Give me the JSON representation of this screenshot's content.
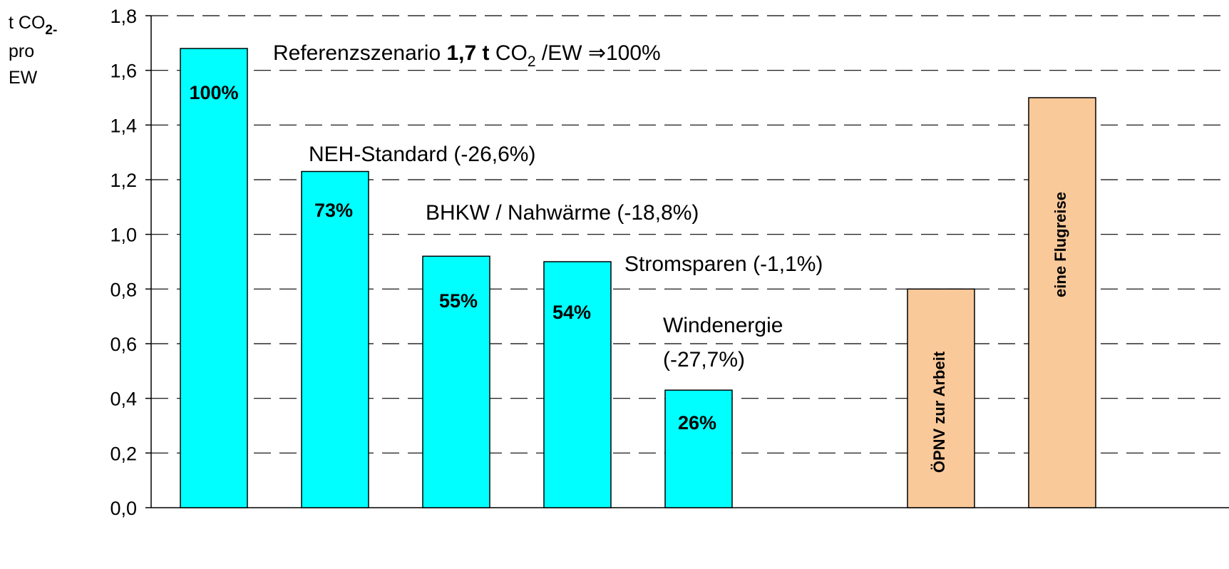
{
  "chart_data": {
    "type": "bar",
    "ylabel": [
      "t CO",
      "2-",
      "pro",
      "EW"
    ],
    "categories": [
      null,
      null,
      null,
      null,
      null,
      null,
      "ÖPNV zur Arbeit",
      "eine Flugreise"
    ],
    "values": [
      1.68,
      1.23,
      0.92,
      0.9,
      0.43,
      null,
      0.8,
      1.5
    ],
    "colors": [
      "#00ffff",
      "#00ffff",
      "#00ffff",
      "#00ffff",
      "#00ffff",
      null,
      "#f9c99a",
      "#f9c99a"
    ],
    "bar_percent_labels": [
      "100%",
      "73%",
      "55%",
      "54%",
      "26%"
    ],
    "reference_note": [
      "Referenzszenario ",
      "1,7 t",
      " CO",
      "2",
      " /EW ⇒100%"
    ],
    "annotations": [
      "NEH-Standard (-26,6%)",
      "BHKW / Nahwärme (-18,8%)",
      "Stromsparen (-1,1%)",
      "Windenergie",
      "(-27,7%)"
    ],
    "ylim": [
      0,
      1.8
    ],
    "yticks": [
      {
        "value": 0,
        "label": "0,0"
      },
      {
        "value": 0.2,
        "label": "0,2"
      },
      {
        "value": 0.4,
        "label": "0,4"
      },
      {
        "value": 0.6,
        "label": "0,6"
      },
      {
        "value": 0.8,
        "label": "0,8"
      },
      {
        "value": 1.0,
        "label": "1,0"
      },
      {
        "value": 1.2,
        "label": "1,2"
      },
      {
        "value": 1.4,
        "label": "1,4"
      },
      {
        "value": 1.6,
        "label": "1,6"
      },
      {
        "value": 1.8,
        "label": "1,8"
      }
    ],
    "grid": true
  }
}
